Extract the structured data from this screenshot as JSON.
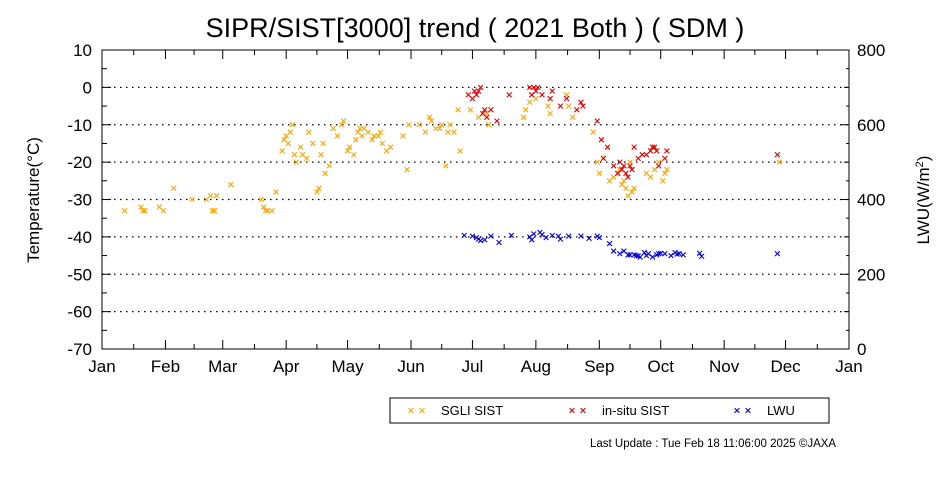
{
  "chart_data": {
    "type": "scatter",
    "title": "SIPR/SIST[3000] trend ( 2021 Both ) ( SDM )",
    "ylabel": "Temperature(°C)",
    "y2label_main": "LWU(W/m",
    "y2label_sup": "2",
    "y2label_end": ")",
    "ylim": [
      -70,
      10
    ],
    "y2lim": [
      0,
      800
    ],
    "yticks": [
      "10",
      "0",
      "-10",
      "-20",
      "-30",
      "-40",
      "-50",
      "-60",
      "-70"
    ],
    "y2ticks": [
      "800",
      "600",
      "400",
      "200",
      "0"
    ],
    "xlim": [
      0,
      365
    ],
    "x_unit": "day of year",
    "xticks": [
      {
        "label": "Jan",
        "x": 0
      },
      {
        "label": "Feb",
        "x": 31
      },
      {
        "label": "Mar",
        "x": 59
      },
      {
        "label": "Apr",
        "x": 90
      },
      {
        "label": "May",
        "x": 120
      },
      {
        "label": "Jun",
        "x": 151
      },
      {
        "label": "Jul",
        "x": 181
      },
      {
        "label": "Aug",
        "x": 212
      },
      {
        "label": "Sep",
        "x": 243
      },
      {
        "label": "Oct",
        "x": 273
      },
      {
        "label": "Nov",
        "x": 304
      },
      {
        "label": "Dec",
        "x": 334
      },
      {
        "label": "Jan",
        "x": 365
      }
    ],
    "grid": "horizontal-dotted",
    "legend_position": "bottom",
    "series": [
      {
        "name": "SGLI SIST",
        "color": "#ffa500",
        "axis": "left",
        "points": [
          [
            11,
            -33
          ],
          [
            19,
            -32
          ],
          [
            20,
            -33
          ],
          [
            21,
            -33
          ],
          [
            28,
            -32
          ],
          [
            30,
            -33
          ],
          [
            35,
            -27
          ],
          [
            44,
            -30
          ],
          [
            51,
            -30
          ],
          [
            53,
            -29
          ],
          [
            54,
            -33
          ],
          [
            55,
            -33
          ],
          [
            56,
            -29
          ],
          [
            63,
            -26
          ],
          [
            78,
            -30
          ],
          [
            79,
            -32
          ],
          [
            80,
            -33
          ],
          [
            81,
            -33
          ],
          [
            83,
            -33
          ],
          [
            85,
            -28
          ],
          [
            88,
            -17
          ],
          [
            89,
            -14
          ],
          [
            90,
            -13
          ],
          [
            91,
            -15
          ],
          [
            92,
            -12
          ],
          [
            93,
            -10
          ],
          [
            94,
            -18
          ],
          [
            95,
            -20
          ],
          [
            97,
            -16
          ],
          [
            98,
            -18
          ],
          [
            100,
            -19
          ],
          [
            101,
            -12
          ],
          [
            103,
            -15
          ],
          [
            105,
            -28
          ],
          [
            106,
            -27
          ],
          [
            107,
            -18
          ],
          [
            108,
            -15
          ],
          [
            109,
            -23
          ],
          [
            111,
            -21
          ],
          [
            113,
            -11
          ],
          [
            115,
            -13
          ],
          [
            117,
            -10
          ],
          [
            118,
            -9
          ],
          [
            120,
            -17
          ],
          [
            121,
            -16
          ],
          [
            123,
            -18
          ],
          [
            124,
            -14
          ],
          [
            125,
            -12
          ],
          [
            126,
            -11
          ],
          [
            127,
            -13
          ],
          [
            128,
            -11
          ],
          [
            130,
            -12
          ],
          [
            132,
            -14
          ],
          [
            133,
            -13
          ],
          [
            135,
            -13
          ],
          [
            136,
            -12
          ],
          [
            137,
            -15
          ],
          [
            139,
            -17
          ],
          [
            141,
            -16
          ],
          [
            147,
            -13
          ],
          [
            149,
            -22
          ],
          [
            150,
            -10
          ],
          [
            155,
            -10
          ],
          [
            158,
            -12
          ],
          [
            160,
            -8
          ],
          [
            161,
            -9
          ],
          [
            163,
            -11
          ],
          [
            165,
            -11
          ],
          [
            166,
            -10
          ],
          [
            168,
            -21
          ],
          [
            169,
            -12
          ],
          [
            170,
            -10
          ],
          [
            172,
            -12
          ],
          [
            174,
            -6
          ],
          [
            175,
            -17
          ],
          [
            180,
            -6
          ],
          [
            184,
            -8
          ],
          [
            188,
            -7
          ],
          [
            189,
            -10
          ],
          [
            206,
            -8
          ],
          [
            207,
            -6
          ],
          [
            209,
            -4
          ],
          [
            210,
            -2
          ],
          [
            212,
            -3
          ],
          [
            218,
            -5
          ],
          [
            219,
            -7
          ],
          [
            227,
            -2
          ],
          [
            228,
            -5
          ],
          [
            230,
            -8
          ],
          [
            240,
            -12
          ],
          [
            242,
            -20
          ],
          [
            243,
            -23
          ],
          [
            245,
            -19
          ],
          [
            248,
            -25
          ],
          [
            250,
            -24
          ],
          [
            252,
            -23
          ],
          [
            253,
            -22
          ],
          [
            254,
            -26
          ],
          [
            255,
            -25
          ],
          [
            256,
            -27
          ],
          [
            257,
            -29
          ],
          [
            258,
            -20
          ],
          [
            259,
            -28
          ],
          [
            260,
            -27
          ],
          [
            266,
            -23
          ],
          [
            268,
            -24
          ],
          [
            270,
            -22
          ],
          [
            272,
            -20
          ],
          [
            274,
            -25
          ],
          [
            275,
            -23
          ],
          [
            276,
            -22
          ],
          [
            331,
            -20
          ]
        ]
      },
      {
        "name": "in-situ SIST",
        "color": "#e00000",
        "axis": "left",
        "points": [
          [
            179,
            -2
          ],
          [
            181,
            -3
          ],
          [
            182,
            -1
          ],
          [
            183,
            -2
          ],
          [
            184,
            -1
          ],
          [
            185,
            0
          ],
          [
            186,
            -7
          ],
          [
            187,
            -6
          ],
          [
            188,
            -8
          ],
          [
            190,
            -6
          ],
          [
            193,
            -9
          ],
          [
            199,
            -2
          ],
          [
            209,
            0
          ],
          [
            210,
            -2
          ],
          [
            211,
            0
          ],
          [
            212,
            -1
          ],
          [
            213,
            0
          ],
          [
            215,
            -2
          ],
          [
            219,
            -3
          ],
          [
            220,
            -1
          ],
          [
            224,
            -5
          ],
          [
            227,
            -3
          ],
          [
            232,
            -6
          ],
          [
            234,
            -4
          ],
          [
            235,
            -5
          ],
          [
            242,
            -9
          ],
          [
            244,
            -14
          ],
          [
            245,
            -19
          ],
          [
            247,
            -16
          ],
          [
            250,
            -21
          ],
          [
            252,
            -23
          ],
          [
            253,
            -20
          ],
          [
            254,
            -22
          ],
          [
            255,
            -21
          ],
          [
            256,
            -23
          ],
          [
            257,
            -24
          ],
          [
            258,
            -21
          ],
          [
            259,
            -22
          ],
          [
            260,
            -16
          ],
          [
            262,
            -19
          ],
          [
            264,
            -18
          ],
          [
            266,
            -18
          ],
          [
            268,
            -17
          ],
          [
            269,
            -16
          ],
          [
            270,
            -16
          ],
          [
            271,
            -17
          ],
          [
            272,
            -21
          ],
          [
            275,
            -19
          ],
          [
            276,
            -17
          ],
          [
            330,
            -18
          ]
        ]
      },
      {
        "name": "LWU",
        "color": "#0000dd",
        "axis": "right",
        "points": [
          [
            177,
            304
          ],
          [
            181,
            302
          ],
          [
            183,
            298
          ],
          [
            184,
            294
          ],
          [
            185,
            290
          ],
          [
            187,
            292
          ],
          [
            190,
            302
          ],
          [
            194,
            285
          ],
          [
            200,
            304
          ],
          [
            209,
            300
          ],
          [
            210,
            292
          ],
          [
            211,
            308
          ],
          [
            214,
            312
          ],
          [
            215,
            306
          ],
          [
            217,
            298
          ],
          [
            220,
            304
          ],
          [
            223,
            302
          ],
          [
            224,
            294
          ],
          [
            228,
            302
          ],
          [
            234,
            302
          ],
          [
            238,
            296
          ],
          [
            242,
            302
          ],
          [
            243,
            298
          ],
          [
            248,
            282
          ],
          [
            250,
            262
          ],
          [
            253,
            255
          ],
          [
            255,
            262
          ],
          [
            257,
            252
          ],
          [
            258,
            252
          ],
          [
            260,
            252
          ],
          [
            261,
            250
          ],
          [
            262,
            249
          ],
          [
            263,
            246
          ],
          [
            265,
            258
          ],
          [
            266,
            250
          ],
          [
            267,
            255
          ],
          [
            269,
            246
          ],
          [
            271,
            252
          ],
          [
            272,
            255
          ],
          [
            273,
            256
          ],
          [
            275,
            255
          ],
          [
            278,
            250
          ],
          [
            280,
            258
          ],
          [
            281,
            254
          ],
          [
            282,
            255
          ],
          [
            284,
            252
          ],
          [
            292,
            256
          ],
          [
            293,
            248
          ],
          [
            330,
            255
          ]
        ]
      }
    ]
  },
  "legend": [
    {
      "label": "SGLI SIST",
      "color": "#ffa500"
    },
    {
      "label": "in-situ SIST",
      "color": "#e00000"
    },
    {
      "label": "LWU",
      "color": "#0000dd"
    }
  ],
  "footer": {
    "last_update": "Last Update : Tue Feb 18 11:06:00 2025 ©JAXA"
  }
}
